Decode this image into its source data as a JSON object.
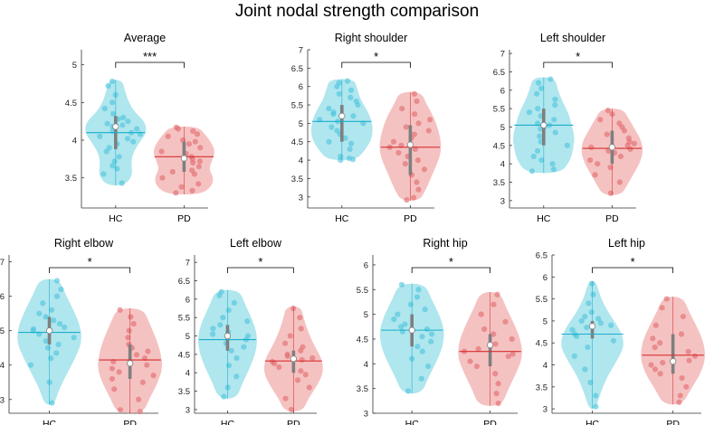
{
  "title": "Joint nodal strength comparison",
  "colors": {
    "hc_fill": "#7fd6e3",
    "hc_dot": "#52c6dd",
    "hc_line": "#1aaecb",
    "pd_fill": "#ef9c9c",
    "pd_dot": "#e26f72",
    "pd_line": "#d62f2f",
    "box": "#7f7f7f",
    "axis": "#333333"
  },
  "chart_data": [
    {
      "type": "violin",
      "title": "Average",
      "categories": [
        "HC",
        "PD"
      ],
      "ylim": [
        3.1,
        5.2
      ],
      "yticks": [
        3.5,
        4,
        4.5,
        5
      ],
      "significance": "***",
      "groups": [
        {
          "name": "HC",
          "min": 3.4,
          "max": 4.8,
          "mean": 4.1,
          "median": 4.18,
          "q1": 3.88,
          "q3": 4.32,
          "density": [
            0.3,
            0.55,
            0.5,
            0.55,
            0.75,
            1.0,
            0.95,
            0.6,
            0.4,
            0.3,
            0.2
          ],
          "points": [
            3.43,
            3.55,
            3.62,
            3.66,
            3.72,
            3.78,
            3.85,
            3.9,
            3.95,
            3.98,
            4.02,
            4.05,
            4.08,
            4.1,
            4.12,
            4.15,
            4.18,
            4.2,
            4.22,
            4.25,
            4.28,
            4.3,
            4.35,
            4.42,
            4.5,
            4.6,
            4.72,
            4.78
          ]
        },
        {
          "name": "PD",
          "min": 3.28,
          "max": 4.18,
          "mean": 3.78,
          "median": 3.76,
          "q1": 3.58,
          "q3": 3.98,
          "density": [
            0.55,
            0.9,
            0.95,
            0.8,
            0.9,
            1.0,
            0.9,
            0.7,
            0.45
          ],
          "points": [
            3.3,
            3.33,
            3.38,
            3.42,
            3.5,
            3.55,
            3.58,
            3.6,
            3.65,
            3.7,
            3.72,
            3.75,
            3.78,
            3.82,
            3.85,
            3.9,
            3.95,
            3.98,
            4.0,
            4.05,
            4.08,
            4.12,
            4.15,
            4.17
          ]
        }
      ]
    },
    {
      "type": "violin",
      "title": "Right shoulder",
      "categories": [
        "HC",
        "PD"
      ],
      "ylim": [
        2.7,
        7.0
      ],
      "yticks": [
        3,
        3.5,
        4,
        4.5,
        5,
        5.5,
        6,
        6.5,
        7
      ],
      "significance": "*",
      "groups": [
        {
          "name": "HC",
          "min": 4.0,
          "max": 6.2,
          "mean": 5.05,
          "median": 5.2,
          "q1": 4.5,
          "q3": 5.5,
          "density": [
            0.45,
            0.75,
            0.95,
            1.0,
            0.95,
            0.8,
            0.6,
            0.5,
            0.4
          ],
          "points": [
            4.0,
            4.02,
            4.05,
            4.1,
            4.3,
            4.45,
            4.5,
            4.6,
            4.7,
            4.8,
            4.9,
            5.0,
            5.05,
            5.1,
            5.2,
            5.25,
            5.3,
            5.4,
            5.5,
            5.6,
            5.7,
            5.8,
            5.9,
            6.0,
            6.1,
            6.15
          ]
        },
        {
          "name": "PD",
          "min": 2.9,
          "max": 5.85,
          "mean": 4.35,
          "median": 4.42,
          "q1": 3.6,
          "q3": 4.95,
          "density": [
            0.3,
            0.5,
            0.65,
            0.8,
            0.95,
            1.0,
            0.95,
            0.85,
            0.7,
            0.5,
            0.35
          ],
          "points": [
            2.92,
            2.98,
            3.2,
            3.4,
            3.6,
            3.75,
            3.9,
            4.0,
            4.1,
            4.2,
            4.3,
            4.35,
            4.4,
            4.5,
            4.6,
            4.7,
            4.8,
            4.9,
            5.0,
            5.1,
            5.25,
            5.4,
            5.6,
            5.8
          ]
        }
      ]
    },
    {
      "type": "violin",
      "title": "Left shoulder",
      "categories": [
        "HC",
        "PD"
      ],
      "ylim": [
        2.8,
        7.1
      ],
      "yticks": [
        3,
        3.5,
        4,
        4.5,
        5,
        5.5,
        6,
        6.5,
        7
      ],
      "significance": "*",
      "groups": [
        {
          "name": "HC",
          "min": 3.75,
          "max": 6.35,
          "mean": 5.05,
          "median": 5.05,
          "q1": 4.5,
          "q3": 5.5,
          "density": [
            0.55,
            0.85,
            0.95,
            1.0,
            0.9,
            0.8,
            0.6,
            0.45,
            0.35
          ],
          "points": [
            3.8,
            3.85,
            4.0,
            4.1,
            4.2,
            4.35,
            4.5,
            4.6,
            4.75,
            4.85,
            4.95,
            5.0,
            5.05,
            5.1,
            5.2,
            5.3,
            5.4,
            5.5,
            5.6,
            5.75,
            5.9,
            6.05,
            6.2,
            6.3
          ]
        },
        {
          "name": "PD",
          "min": 3.15,
          "max": 5.5,
          "mean": 4.42,
          "median": 4.45,
          "q1": 4.0,
          "q3": 4.9,
          "density": [
            0.3,
            0.5,
            0.7,
            0.9,
            1.0,
            0.95,
            0.75,
            0.55,
            0.35
          ],
          "points": [
            3.2,
            3.5,
            3.7,
            3.9,
            4.0,
            4.1,
            4.2,
            4.3,
            4.35,
            4.4,
            4.45,
            4.5,
            4.55,
            4.6,
            4.7,
            4.8,
            4.9,
            5.0,
            5.1,
            5.2,
            5.35,
            5.45
          ]
        }
      ]
    },
    {
      "type": "violin",
      "title": "Right elbow",
      "categories": [
        "HC",
        "PD"
      ],
      "ylim": [
        2.6,
        7.2
      ],
      "yticks": [
        3,
        4,
        5,
        6,
        7
      ],
      "significance": "*",
      "groups": [
        {
          "name": "HC",
          "min": 2.85,
          "max": 6.5,
          "mean": 4.95,
          "median": 5.0,
          "q1": 4.6,
          "q3": 5.4,
          "density": [
            0.15,
            0.3,
            0.55,
            0.8,
            1.0,
            0.95,
            0.75,
            0.5,
            0.3
          ],
          "points": [
            2.9,
            3.5,
            4.0,
            4.2,
            4.35,
            4.5,
            4.6,
            4.7,
            4.8,
            4.9,
            5.0,
            5.05,
            5.1,
            5.2,
            5.3,
            5.4,
            5.5,
            5.6,
            5.8,
            6.0,
            6.2,
            6.45
          ]
        },
        {
          "name": "PD",
          "min": 2.6,
          "max": 5.65,
          "mean": 4.15,
          "median": 4.05,
          "q1": 3.6,
          "q3": 4.6,
          "density": [
            0.4,
            0.6,
            0.85,
            1.0,
            0.95,
            0.8,
            0.6,
            0.4
          ],
          "points": [
            2.65,
            2.7,
            3.0,
            3.3,
            3.5,
            3.6,
            3.7,
            3.8,
            3.9,
            4.0,
            4.1,
            4.2,
            4.3,
            4.4,
            4.5,
            4.6,
            4.8,
            5.0,
            5.2,
            5.4,
            5.6
          ]
        }
      ]
    },
    {
      "type": "violin",
      "title": "Left elbow",
      "categories": [
        "HC",
        "PD"
      ],
      "ylim": [
        2.9,
        7.2
      ],
      "yticks": [
        3,
        3.5,
        4,
        4.5,
        5,
        5.5,
        6,
        6.5,
        7
      ],
      "significance": "*",
      "groups": [
        {
          "name": "HC",
          "min": 3.3,
          "max": 6.25,
          "mean": 4.9,
          "median": 5.0,
          "q1": 4.6,
          "q3": 5.3,
          "density": [
            0.3,
            0.5,
            0.75,
            0.95,
            1.0,
            0.85,
            0.6,
            0.4
          ],
          "points": [
            3.35,
            3.6,
            3.9,
            4.2,
            4.4,
            4.6,
            4.7,
            4.8,
            4.9,
            5.0,
            5.05,
            5.1,
            5.2,
            5.3,
            5.4,
            5.5,
            5.7,
            5.9,
            6.1,
            6.2
          ]
        },
        {
          "name": "PD",
          "min": 2.95,
          "max": 5.8,
          "mean": 4.32,
          "median": 4.38,
          "q1": 4.0,
          "q3": 4.6,
          "density": [
            0.3,
            0.5,
            0.8,
            1.0,
            0.95,
            0.7,
            0.5,
            0.35,
            0.25
          ],
          "points": [
            3.0,
            3.3,
            3.6,
            3.8,
            3.95,
            4.05,
            4.15,
            4.25,
            4.3,
            4.35,
            4.4,
            4.45,
            4.5,
            4.6,
            4.7,
            4.8,
            5.0,
            5.2,
            5.5,
            5.75
          ]
        }
      ]
    },
    {
      "type": "violin",
      "title": "Right hip",
      "categories": [
        "HC",
        "PD"
      ],
      "ylim": [
        3.0,
        6.2
      ],
      "yticks": [
        3,
        3.5,
        4,
        4.5,
        5,
        5.5,
        6
      ],
      "significance": "*",
      "groups": [
        {
          "name": "HC",
          "min": 3.4,
          "max": 5.62,
          "mean": 4.68,
          "median": 4.68,
          "q1": 4.35,
          "q3": 5.0,
          "density": [
            0.3,
            0.5,
            0.75,
            0.95,
            1.0,
            0.85,
            0.6,
            0.4
          ],
          "points": [
            3.45,
            3.7,
            3.95,
            4.1,
            4.25,
            4.35,
            4.45,
            4.55,
            4.6,
            4.65,
            4.7,
            4.75,
            4.8,
            4.9,
            5.0,
            5.1,
            5.2,
            5.35,
            5.5,
            5.6
          ]
        },
        {
          "name": "PD",
          "min": 3.15,
          "max": 5.45,
          "mean": 4.25,
          "median": 4.38,
          "q1": 3.95,
          "q3": 4.6,
          "density": [
            0.35,
            0.55,
            0.8,
            1.0,
            0.95,
            0.75,
            0.5,
            0.3
          ],
          "points": [
            3.2,
            3.4,
            3.6,
            3.8,
            3.95,
            4.05,
            4.15,
            4.2,
            4.25,
            4.3,
            4.4,
            4.5,
            4.6,
            4.7,
            4.85,
            5.0,
            5.2,
            5.4
          ]
        }
      ]
    },
    {
      "type": "violin",
      "title": "Left hip",
      "categories": [
        "HC",
        "PD"
      ],
      "ylim": [
        2.9,
        6.5
      ],
      "yticks": [
        3,
        3.5,
        4,
        4.5,
        5,
        5.5,
        6,
        6.5
      ],
      "significance": "*",
      "groups": [
        {
          "name": "HC",
          "min": 3.0,
          "max": 5.9,
          "mean": 4.7,
          "median": 4.88,
          "q1": 4.6,
          "q3": 5.0,
          "density": [
            0.1,
            0.25,
            0.45,
            0.75,
            1.0,
            0.85,
            0.5,
            0.25,
            0.12
          ],
          "points": [
            3.05,
            3.3,
            3.6,
            3.9,
            4.2,
            4.4,
            4.55,
            4.65,
            4.7,
            4.8,
            4.85,
            4.9,
            4.95,
            5.0,
            5.05,
            5.1,
            5.2,
            5.4,
            5.6,
            5.85
          ]
        },
        {
          "name": "PD",
          "min": 3.1,
          "max": 5.55,
          "mean": 4.22,
          "median": 4.08,
          "q1": 3.8,
          "q3": 4.7,
          "density": [
            0.3,
            0.55,
            0.85,
            1.0,
            0.95,
            0.75,
            0.5,
            0.3
          ],
          "points": [
            3.15,
            3.3,
            3.5,
            3.7,
            3.8,
            3.9,
            4.0,
            4.05,
            4.1,
            4.2,
            4.3,
            4.4,
            4.5,
            4.6,
            4.7,
            4.9,
            5.1,
            5.3,
            5.5
          ]
        }
      ]
    }
  ]
}
